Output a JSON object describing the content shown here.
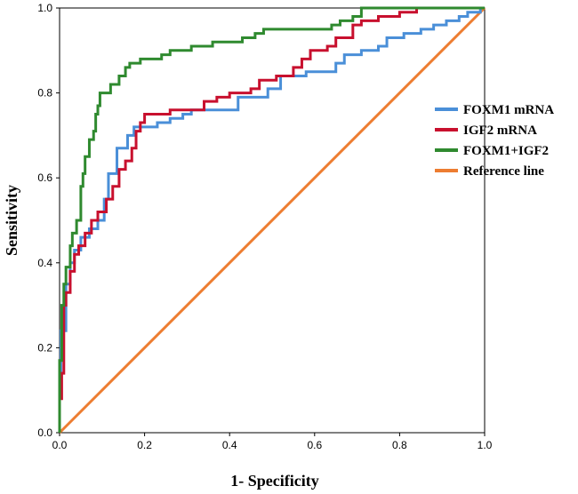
{
  "chart_data": {
    "type": "line",
    "title": "",
    "xlabel": "1- Specificity",
    "ylabel": "Sensitivity",
    "xlim": [
      0,
      1
    ],
    "ylim": [
      0,
      1
    ],
    "xticks": [
      "0.0",
      "0.2",
      "0.4",
      "0.6",
      "0.8",
      "1.0"
    ],
    "yticks": [
      "0.0",
      "0.2",
      "0.4",
      "0.6",
      "0.8",
      "1.0"
    ],
    "legend_position": "right",
    "series": [
      {
        "name": "FOXM1 mRNA",
        "color": "#4a8fd8",
        "points": [
          [
            0.0,
            0.0
          ],
          [
            0.0,
            0.06
          ],
          [
            0.0,
            0.13
          ],
          [
            0.003,
            0.13
          ],
          [
            0.003,
            0.24
          ],
          [
            0.015,
            0.24
          ],
          [
            0.015,
            0.35
          ],
          [
            0.025,
            0.35
          ],
          [
            0.025,
            0.4
          ],
          [
            0.035,
            0.4
          ],
          [
            0.035,
            0.43
          ],
          [
            0.05,
            0.43
          ],
          [
            0.05,
            0.46
          ],
          [
            0.07,
            0.46
          ],
          [
            0.07,
            0.48
          ],
          [
            0.09,
            0.48
          ],
          [
            0.09,
            0.5
          ],
          [
            0.105,
            0.5
          ],
          [
            0.105,
            0.55
          ],
          [
            0.115,
            0.55
          ],
          [
            0.115,
            0.61
          ],
          [
            0.135,
            0.61
          ],
          [
            0.135,
            0.67
          ],
          [
            0.16,
            0.67
          ],
          [
            0.16,
            0.7
          ],
          [
            0.175,
            0.7
          ],
          [
            0.175,
            0.72
          ],
          [
            0.23,
            0.72
          ],
          [
            0.23,
            0.73
          ],
          [
            0.26,
            0.73
          ],
          [
            0.26,
            0.74
          ],
          [
            0.29,
            0.74
          ],
          [
            0.29,
            0.75
          ],
          [
            0.31,
            0.75
          ],
          [
            0.31,
            0.76
          ],
          [
            0.42,
            0.76
          ],
          [
            0.42,
            0.79
          ],
          [
            0.49,
            0.79
          ],
          [
            0.49,
            0.81
          ],
          [
            0.52,
            0.81
          ],
          [
            0.52,
            0.84
          ],
          [
            0.58,
            0.84
          ],
          [
            0.58,
            0.85
          ],
          [
            0.65,
            0.85
          ],
          [
            0.65,
            0.87
          ],
          [
            0.67,
            0.87
          ],
          [
            0.67,
            0.89
          ],
          [
            0.71,
            0.89
          ],
          [
            0.71,
            0.9
          ],
          [
            0.75,
            0.9
          ],
          [
            0.75,
            0.91
          ],
          [
            0.77,
            0.91
          ],
          [
            0.77,
            0.93
          ],
          [
            0.81,
            0.93
          ],
          [
            0.81,
            0.94
          ],
          [
            0.85,
            0.94
          ],
          [
            0.85,
            0.95
          ],
          [
            0.88,
            0.95
          ],
          [
            0.88,
            0.96
          ],
          [
            0.91,
            0.96
          ],
          [
            0.91,
            0.97
          ],
          [
            0.94,
            0.97
          ],
          [
            0.94,
            0.98
          ],
          [
            0.96,
            0.98
          ],
          [
            0.96,
            0.99
          ],
          [
            0.99,
            0.99
          ],
          [
            0.99,
            1.0
          ],
          [
            1.0,
            1.0
          ]
        ]
      },
      {
        "name": "IGF2 mRNA",
        "color": "#c8102e",
        "points": [
          [
            0.0,
            0.0
          ],
          [
            0.0,
            0.08
          ],
          [
            0.005,
            0.08
          ],
          [
            0.005,
            0.14
          ],
          [
            0.01,
            0.14
          ],
          [
            0.01,
            0.3
          ],
          [
            0.015,
            0.3
          ],
          [
            0.015,
            0.33
          ],
          [
            0.025,
            0.33
          ],
          [
            0.025,
            0.38
          ],
          [
            0.035,
            0.38
          ],
          [
            0.035,
            0.42
          ],
          [
            0.045,
            0.42
          ],
          [
            0.045,
            0.44
          ],
          [
            0.06,
            0.44
          ],
          [
            0.06,
            0.47
          ],
          [
            0.075,
            0.47
          ],
          [
            0.075,
            0.5
          ],
          [
            0.09,
            0.5
          ],
          [
            0.09,
            0.52
          ],
          [
            0.11,
            0.52
          ],
          [
            0.11,
            0.55
          ],
          [
            0.125,
            0.55
          ],
          [
            0.125,
            0.58
          ],
          [
            0.14,
            0.58
          ],
          [
            0.14,
            0.62
          ],
          [
            0.155,
            0.62
          ],
          [
            0.155,
            0.64
          ],
          [
            0.17,
            0.64
          ],
          [
            0.17,
            0.67
          ],
          [
            0.18,
            0.67
          ],
          [
            0.18,
            0.71
          ],
          [
            0.19,
            0.71
          ],
          [
            0.19,
            0.73
          ],
          [
            0.2,
            0.73
          ],
          [
            0.2,
            0.75
          ],
          [
            0.26,
            0.75
          ],
          [
            0.26,
            0.76
          ],
          [
            0.34,
            0.76
          ],
          [
            0.34,
            0.78
          ],
          [
            0.37,
            0.78
          ],
          [
            0.37,
            0.79
          ],
          [
            0.4,
            0.79
          ],
          [
            0.4,
            0.8
          ],
          [
            0.45,
            0.8
          ],
          [
            0.45,
            0.81
          ],
          [
            0.47,
            0.81
          ],
          [
            0.47,
            0.83
          ],
          [
            0.51,
            0.83
          ],
          [
            0.51,
            0.84
          ],
          [
            0.55,
            0.84
          ],
          [
            0.55,
            0.86
          ],
          [
            0.57,
            0.86
          ],
          [
            0.57,
            0.88
          ],
          [
            0.59,
            0.88
          ],
          [
            0.59,
            0.9
          ],
          [
            0.63,
            0.9
          ],
          [
            0.63,
            0.91
          ],
          [
            0.65,
            0.91
          ],
          [
            0.65,
            0.93
          ],
          [
            0.69,
            0.93
          ],
          [
            0.69,
            0.96
          ],
          [
            0.71,
            0.96
          ],
          [
            0.71,
            0.97
          ],
          [
            0.75,
            0.97
          ],
          [
            0.75,
            0.98
          ],
          [
            0.8,
            0.98
          ],
          [
            0.8,
            0.99
          ],
          [
            0.84,
            0.99
          ],
          [
            0.84,
            1.0
          ],
          [
            1.0,
            1.0
          ]
        ]
      },
      {
        "name": "FOXM1+IGF2",
        "color": "#2f8a2f",
        "points": [
          [
            0.0,
            0.0
          ],
          [
            0.0,
            0.17
          ],
          [
            0.005,
            0.17
          ],
          [
            0.005,
            0.3
          ],
          [
            0.01,
            0.3
          ],
          [
            0.01,
            0.35
          ],
          [
            0.015,
            0.35
          ],
          [
            0.015,
            0.39
          ],
          [
            0.025,
            0.39
          ],
          [
            0.025,
            0.44
          ],
          [
            0.03,
            0.44
          ],
          [
            0.03,
            0.47
          ],
          [
            0.04,
            0.47
          ],
          [
            0.04,
            0.5
          ],
          [
            0.05,
            0.5
          ],
          [
            0.05,
            0.58
          ],
          [
            0.055,
            0.58
          ],
          [
            0.055,
            0.61
          ],
          [
            0.06,
            0.61
          ],
          [
            0.06,
            0.65
          ],
          [
            0.07,
            0.65
          ],
          [
            0.07,
            0.69
          ],
          [
            0.08,
            0.69
          ],
          [
            0.08,
            0.71
          ],
          [
            0.085,
            0.71
          ],
          [
            0.085,
            0.75
          ],
          [
            0.09,
            0.75
          ],
          [
            0.09,
            0.77
          ],
          [
            0.095,
            0.77
          ],
          [
            0.095,
            0.8
          ],
          [
            0.12,
            0.8
          ],
          [
            0.12,
            0.82
          ],
          [
            0.14,
            0.82
          ],
          [
            0.14,
            0.84
          ],
          [
            0.155,
            0.84
          ],
          [
            0.155,
            0.86
          ],
          [
            0.165,
            0.86
          ],
          [
            0.165,
            0.87
          ],
          [
            0.19,
            0.87
          ],
          [
            0.19,
            0.88
          ],
          [
            0.24,
            0.88
          ],
          [
            0.24,
            0.89
          ],
          [
            0.26,
            0.89
          ],
          [
            0.26,
            0.9
          ],
          [
            0.31,
            0.9
          ],
          [
            0.31,
            0.91
          ],
          [
            0.36,
            0.91
          ],
          [
            0.36,
            0.92
          ],
          [
            0.43,
            0.92
          ],
          [
            0.43,
            0.93
          ],
          [
            0.46,
            0.93
          ],
          [
            0.46,
            0.94
          ],
          [
            0.48,
            0.94
          ],
          [
            0.48,
            0.95
          ],
          [
            0.64,
            0.95
          ],
          [
            0.64,
            0.96
          ],
          [
            0.66,
            0.96
          ],
          [
            0.66,
            0.97
          ],
          [
            0.69,
            0.97
          ],
          [
            0.69,
            0.98
          ],
          [
            0.71,
            0.98
          ],
          [
            0.71,
            1.0
          ],
          [
            1.0,
            1.0
          ]
        ]
      },
      {
        "name": "Reference line",
        "color": "#ed7d31",
        "points": [
          [
            0.0,
            0.0
          ],
          [
            1.0,
            1.0
          ]
        ]
      }
    ]
  }
}
